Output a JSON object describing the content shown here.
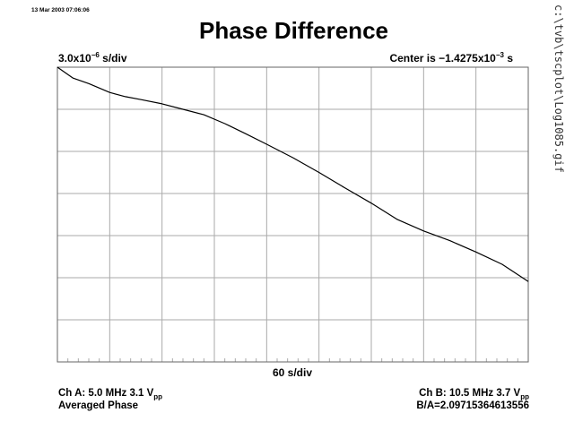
{
  "header": {
    "timestamp": "13 Mar 2003 07:06:06",
    "title": "Phase Difference"
  },
  "scale": {
    "y_per_div_base": "3.0x10",
    "y_per_div_exp": "−6",
    "y_per_div_unit": " s/div",
    "center_base": "Center is −1.4275x10",
    "center_exp": "−3",
    "center_unit": " s",
    "x_per_div": "60 s/div"
  },
  "footer": {
    "ch_a_prefix": "Ch A: 5.0 MHz 3.1 V",
    "ch_a_sub": "pp",
    "mode": "Averaged Phase",
    "ch_b_prefix": "Ch B: 10.5 MHz 3.7 V",
    "ch_b_sub": "pp",
    "ratio": "B/A=2.09715364613556"
  },
  "file_path": "c:\\tvb\\tscplot\\Log1085.gif",
  "chart_data": {
    "type": "line",
    "title": "Phase Difference",
    "xlabel": "60 s/div",
    "ylabel": "3.0x10−6 s/div",
    "x_divisions": 9,
    "y_divisions": 7,
    "minor_x_per_div": 5,
    "grid": true,
    "xlim_div": [
      0,
      9
    ],
    "ylim_div": [
      -3.5,
      3.5
    ],
    "series": [
      {
        "points_div": [
          [
            0.0,
            3.5
          ],
          [
            0.3,
            3.24
          ],
          [
            0.6,
            3.11
          ],
          [
            1.0,
            2.9
          ],
          [
            1.3,
            2.8
          ],
          [
            1.6,
            2.73
          ],
          [
            2.0,
            2.63
          ],
          [
            2.4,
            2.5
          ],
          [
            2.8,
            2.37
          ],
          [
            3.2,
            2.16
          ],
          [
            3.6,
            1.92
          ],
          [
            4.0,
            1.67
          ],
          [
            4.5,
            1.35
          ],
          [
            5.0,
            1.0
          ],
          [
            5.5,
            0.63
          ],
          [
            6.0,
            0.27
          ],
          [
            6.5,
            -0.12
          ],
          [
            7.0,
            -0.39
          ],
          [
            7.5,
            -0.62
          ],
          [
            8.0,
            -0.89
          ],
          [
            8.5,
            -1.18
          ],
          [
            9.0,
            -1.59
          ]
        ]
      }
    ],
    "colors": {
      "trace": "#000000",
      "grid": "#aaaaaa",
      "frame": "#666666"
    }
  }
}
